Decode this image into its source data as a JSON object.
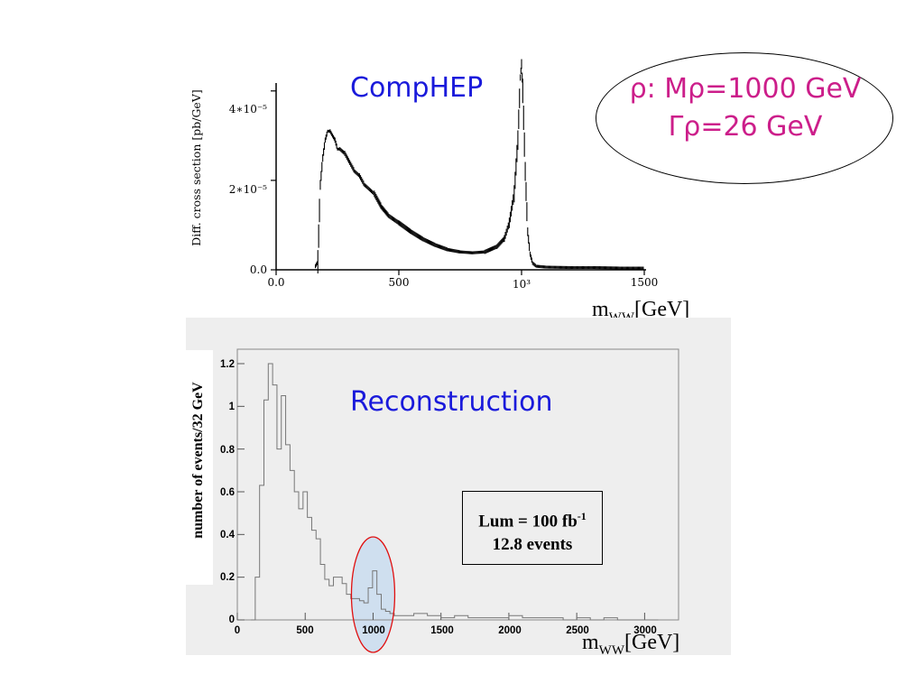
{
  "top_panel": {
    "title": "CompHEP",
    "ylabel": "Diff. cross section [pb/GeV]",
    "ytick_labels": [
      "0.0",
      "2∗10⁻⁵",
      "4∗10⁻⁵"
    ],
    "xtick_labels": [
      "0.0",
      "500",
      "10³",
      "1500"
    ],
    "xlabel_main": "m",
    "xlabel_sub": "WW",
    "xlabel_unit": "[GeV]"
  },
  "annotation": {
    "line1": "ρ:  Mρ=1000 GeV",
    "line2": "Γρ=26  GeV"
  },
  "bottom_panel": {
    "title": "Reconstruction",
    "ylabel": "number of events/32 GeV",
    "ytick_labels": [
      "0",
      "0.2",
      "0.4",
      "0.6",
      "0.8",
      "1",
      "1.2"
    ],
    "xtick_labels": [
      "0",
      "500",
      "1000",
      "1500",
      "2000",
      "2500",
      "3000"
    ],
    "xlabel_main": "m",
    "xlabel_sub": "WW",
    "xlabel_unit": "[GeV]",
    "lum_text": "Lum = 100 fb",
    "lum_exp": "-1",
    "events_text": "12.8 events"
  },
  "colors": {
    "title_blue": "#1a1adb",
    "annotation_magenta": "#cc1e8a",
    "highlight_fill": "#c9dcef",
    "highlight_ring": "#e01010",
    "panel_bg": "#eeeeee"
  },
  "chart_data": [
    {
      "type": "scatter",
      "title": "CompHEP",
      "ylabel": "Diff. cross section [pb/GeV]",
      "xlabel": "mWW[GeV]",
      "xlim": [
        0,
        1500
      ],
      "ylim": [
        0,
        4.5e-05
      ],
      "x": [
        160,
        170,
        180,
        190,
        200,
        210,
        220,
        230,
        240,
        250,
        260,
        280,
        300,
        320,
        340,
        360,
        380,
        400,
        430,
        460,
        500,
        550,
        600,
        650,
        700,
        750,
        800,
        850,
        900,
        930,
        950,
        970,
        985,
        995,
        1000,
        1005,
        1015,
        1025,
        1035,
        1045,
        1060,
        1100,
        1200,
        1300,
        1400,
        1500
      ],
      "y": [
        8e-07,
        1.8e-06,
        1.9e-05,
        2.5e-05,
        2.9e-05,
        3.1e-05,
        3.1e-05,
        3e-05,
        2.9e-05,
        2.7e-05,
        2.7e-05,
        2.6e-05,
        2.4e-05,
        2.2e-05,
        2.1e-05,
        1.9e-05,
        1.8e-05,
        1.7e-05,
        1.4e-05,
        1.2e-05,
        1.05e-05,
        8.5e-06,
        6.8e-06,
        5.5e-06,
        4.5e-06,
        4e-06,
        3.8e-06,
        4e-06,
        5.2e-06,
        7e-06,
        1.05e-05,
        1.7e-05,
        2.9e-05,
        4.3e-05,
        4.6e-05,
        4e-05,
        2.2e-05,
        8.5e-06,
        3.5e-06,
        1.5e-06,
        8e-07,
        6e-07,
        5e-07,
        5e-07,
        4e-07,
        4e-07
      ]
    },
    {
      "type": "line",
      "title": "Reconstruction",
      "ylabel": "number of events/32 GeV",
      "xlabel": "mWW[GeV]",
      "xlim": [
        0,
        3200
      ],
      "ylim": [
        0,
        1.3
      ],
      "x": [
        100,
        132,
        164,
        196,
        228,
        260,
        292,
        324,
        356,
        388,
        420,
        452,
        484,
        516,
        548,
        580,
        612,
        644,
        676,
        708,
        740,
        772,
        804,
        836,
        868,
        900,
        932,
        964,
        996,
        1028,
        1060,
        1092,
        1124,
        1156,
        1188,
        1220,
        1300,
        1400,
        1500,
        1600,
        1700,
        1800,
        1900,
        2000,
        2100,
        2200,
        2300,
        2400,
        2500,
        2600,
        2700,
        2800,
        2900,
        3000
      ],
      "values": [
        0,
        0.2,
        0.63,
        1.03,
        1.2,
        1.1,
        0.8,
        1.05,
        0.82,
        0.7,
        0.6,
        0.52,
        0.6,
        0.48,
        0.42,
        0.38,
        0.26,
        0.19,
        0.16,
        0.2,
        0.2,
        0.17,
        0.12,
        0.1,
        0.1,
        0.09,
        0.08,
        0.15,
        0.23,
        0.12,
        0.05,
        0.04,
        0.03,
        0.02,
        0.02,
        0.02,
        0.03,
        0.02,
        0.01,
        0.02,
        0.01,
        0.01,
        0.01,
        0.02,
        0.01,
        0.01,
        0.01,
        0,
        0.01,
        0,
        0.01,
        0,
        0,
        0
      ]
    }
  ]
}
